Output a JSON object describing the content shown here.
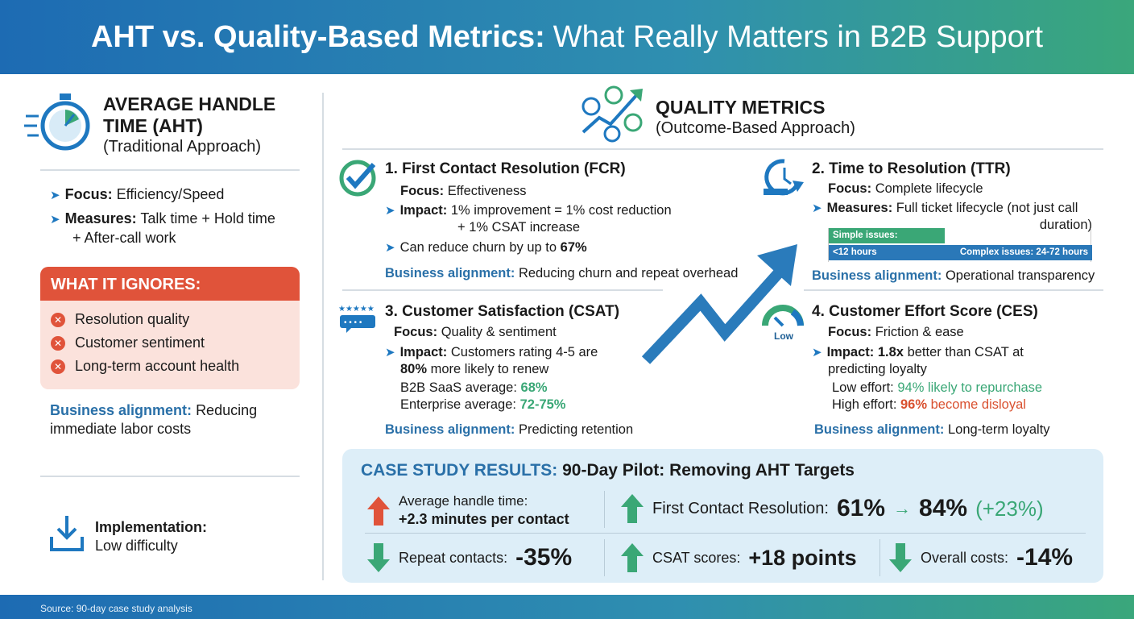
{
  "header": {
    "title_bold": "AHT vs. Quality-Based Metrics:",
    "title_rest": "What Really Matters in B2B Support"
  },
  "left": {
    "title_line1": "AVERAGE HANDLE",
    "title_line2": "TIME (AHT)",
    "subtitle": "(Traditional Approach)",
    "focus_label": "Focus:",
    "focus_value": "Efficiency/Speed",
    "measures_label": "Measures:",
    "measures_value": "Talk time + Hold time",
    "measures_value2": "+ After-call work",
    "ignores_title": "WHAT IT IGNORES:",
    "ignores": [
      "Resolution quality",
      "Customer sentiment",
      "Long-term account health"
    ],
    "ba_label": "Business alignment:",
    "ba_value": "Reducing",
    "ba_value2": "immediate labor costs",
    "impl_label": "Implementation:",
    "impl_value": "Low difficulty"
  },
  "quality": {
    "title": "QUALITY METRICS",
    "subtitle": "(Outcome-Based Approach)"
  },
  "fcr": {
    "title": "1. First Contact Resolution (FCR)",
    "focus_label": "Focus:",
    "focus_value": "Effectiveness",
    "impact_label": "Impact:",
    "impact_value": "1% improvement = 1% cost reduction",
    "impact_value2": "+ 1% CSAT increase",
    "churn": "Can reduce churn by up to",
    "churn_value": "67%",
    "ba_label": "Business alignment:",
    "ba_value": "Reducing churn and repeat overhead"
  },
  "ttr": {
    "title": "2. Time to Resolution (TTR)",
    "focus_label": "Focus:",
    "focus_value": "Complete lifecycle",
    "measures_label": "Measures:",
    "measures_value": "Full ticket lifecycle (not just call",
    "measures_value2": "duration)",
    "simple": "Simple issues:",
    "simple_time": "<12 hours",
    "complex": "Complex issues: 24-72 hours",
    "ba_label": "Business alignment:",
    "ba_value": "Operational transparency"
  },
  "csat": {
    "title": "3. Customer Satisfaction (CSAT)",
    "focus_label": "Focus:",
    "focus_value": "Quality & sentiment",
    "impact_label": "Impact:",
    "impact_value": "Customers rating 4-5 are",
    "impact_pct": "80%",
    "impact_value2": "more likely to renew",
    "saas_label": "B2B SaaS average:",
    "saas_value": "68%",
    "ent_label": "Enterprise average:",
    "ent_value": "72-75%",
    "ba_label": "Business alignment:",
    "ba_value": "Predicting retention"
  },
  "ces": {
    "title": "4. Customer Effort Score (CES)",
    "gauge_label": "Low",
    "focus_label": "Focus:",
    "focus_value": "Friction & ease",
    "impact_label": "Impact:",
    "impact_bold": "1.8x",
    "impact_value": "better than CSAT at",
    "impact_value2": "predicting loyalty",
    "low_label": "Low effort:",
    "low_value": "94% likely to repurchase",
    "high_label": "High effort:",
    "high_pct": "96%",
    "high_value": "become disloyal",
    "ba_label": "Business alignment:",
    "ba_value": "Long-term loyalty"
  },
  "case": {
    "title_label": "CASE STUDY RESULTS:",
    "title": "90-Day Pilot: Removing AHT Targets",
    "aht_label": "Average handle time:",
    "aht_value": "+2.3 minutes per contact",
    "fcr_label": "First Contact Resolution:",
    "fcr_from": "61%",
    "fcr_arrow": "→",
    "fcr_to": "84%",
    "fcr_delta": "(+23%)",
    "repeat_label": "Repeat contacts:",
    "repeat_value": "-35%",
    "csat_label": "CSAT scores:",
    "csat_value": "+18 points",
    "cost_label": "Overall costs:",
    "cost_value": "-14%"
  },
  "footer": {
    "source": "Source: 90-day case study analysis"
  },
  "colors": {
    "blue": "#1e78c0",
    "green": "#3aa776",
    "red": "#e0533a",
    "case_bg": "#ddeef8"
  }
}
